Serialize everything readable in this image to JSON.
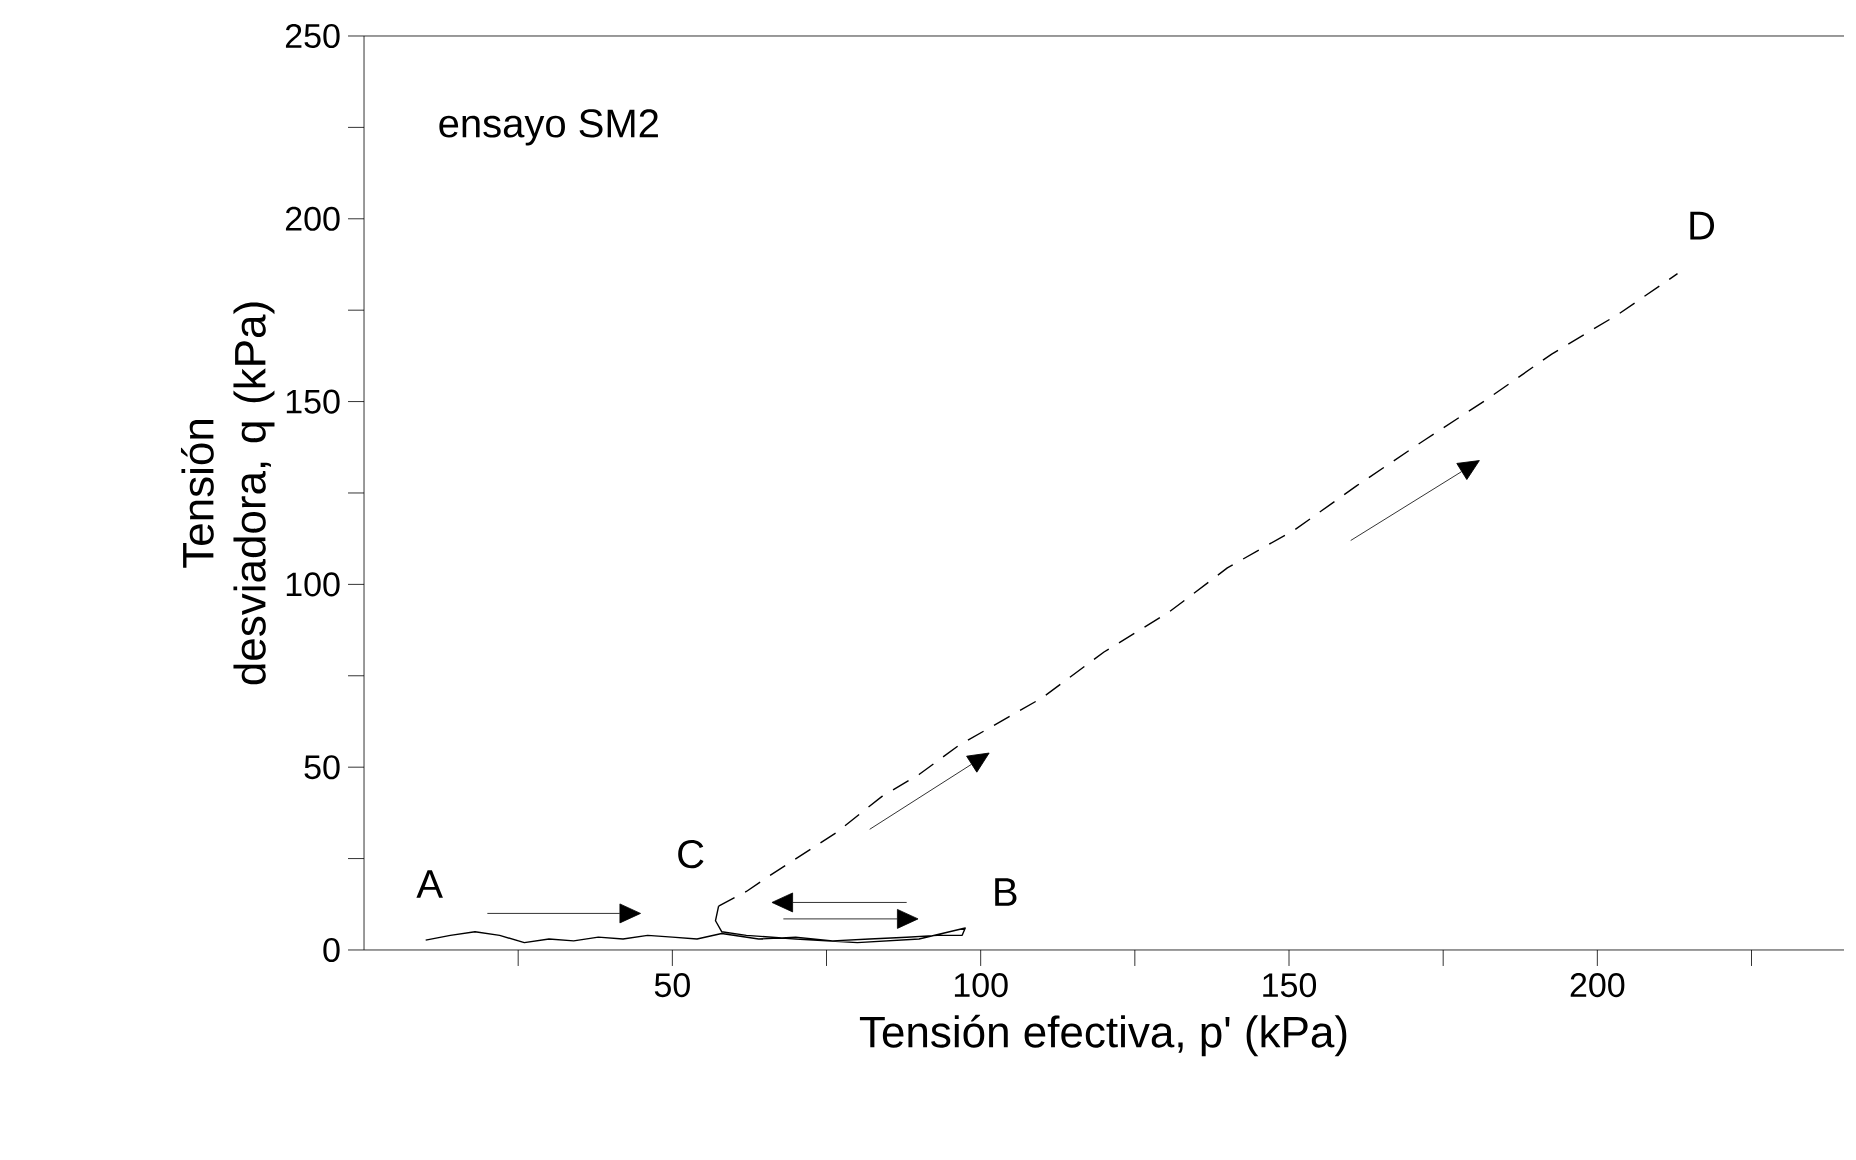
{
  "chart_data": {
    "type": "line",
    "xlabel": "Tensión efectiva, p' (kPa)",
    "ylabel": "Tensión desviadora, q (kPa)",
    "xlim": [
      0,
      240
    ],
    "ylim": [
      0,
      250
    ],
    "xticks": [
      {
        "value": 25,
        "label": null
      },
      50,
      {
        "value": 75,
        "label": null
      },
      100,
      {
        "value": 125,
        "label": null
      },
      150,
      {
        "value": 175,
        "label": null
      },
      200,
      {
        "value": 225,
        "label": null
      }
    ],
    "yticks": [
      0,
      {
        "value": 25,
        "label": null
      },
      50,
      {
        "value": 75,
        "label": null
      },
      100,
      {
        "value": 125,
        "label": null
      },
      150,
      {
        "value": 175,
        "label": null
      },
      200,
      {
        "value": 225,
        "label": null
      },
      250
    ],
    "series": [
      {
        "color": "#000000",
        "line_style": "solid",
        "x": [
          10,
          14,
          18,
          22,
          26,
          30,
          34,
          38,
          42,
          46,
          50,
          54,
          58,
          64,
          70,
          76,
          82,
          88,
          93,
          97,
          97.5,
          90,
          80,
          70,
          62,
          58,
          57,
          57.5
        ],
        "values": [
          2.7,
          4,
          5,
          4,
          2,
          3,
          2.5,
          3.5,
          3,
          4,
          3.5,
          3,
          4.5,
          3,
          3.5,
          2.5,
          3,
          3.5,
          4,
          4,
          6,
          3,
          2,
          3,
          4,
          5,
          8,
          12
        ]
      },
      {
        "color": "#000000",
        "line_style": "dashed",
        "x": [
          57.5,
          62,
          65.5,
          71,
          76.5,
          84,
          90,
          96.5,
          110,
          120,
          130.6,
          140,
          151,
          161,
          172,
          182,
          192.6,
          203.5,
          213
        ],
        "values": [
          12,
          16,
          20,
          26,
          32,
          42,
          48,
          56,
          69,
          81.5,
          92.5,
          104.5,
          115,
          127,
          139.5,
          150.5,
          163,
          174,
          185
        ]
      }
    ],
    "annotations": [
      "ensayo SM2",
      {
        "text": "A",
        "x": 10,
        "y": 2.7
      },
      {
        "text": "C",
        "x": 57.5,
        "y": 12
      },
      {
        "text": "B",
        "x": 97.5,
        "y": 6
      },
      {
        "text": "D",
        "x": 213,
        "y": 185
      }
    ],
    "marker": "none"
  }
}
